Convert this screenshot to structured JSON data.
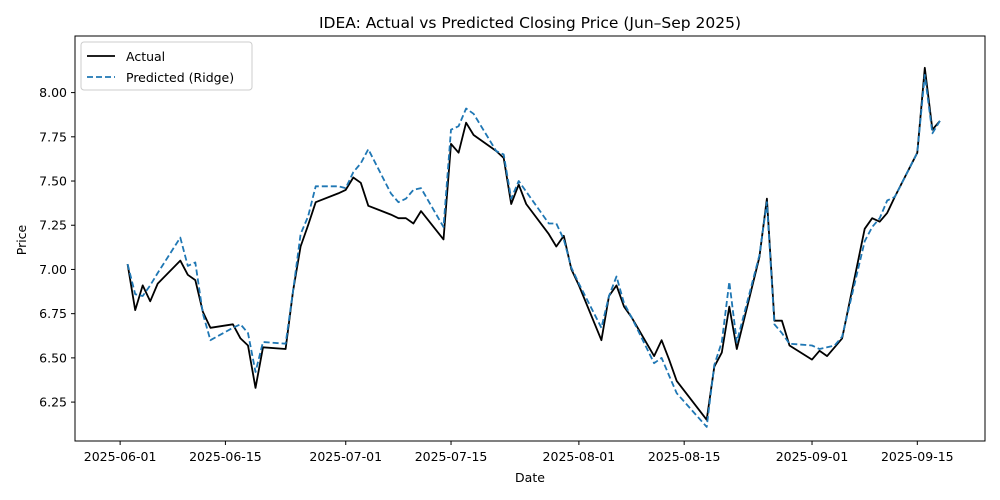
{
  "chart_data": {
    "type": "line",
    "title": "IDEA: Actual vs Predicted Closing Price (Jun–Sep 2025)",
    "xlabel": "Date",
    "ylabel": "Price",
    "xlim": [
      "2025-05-26",
      "2025-09-24"
    ],
    "ylim": [
      6.03,
      8.32
    ],
    "x_ticks": [
      "2025-06-01",
      "2025-06-15",
      "2025-07-01",
      "2025-07-15",
      "2025-08-01",
      "2025-08-15",
      "2025-09-01",
      "2025-09-15"
    ],
    "y_ticks": [
      "6.25",
      "6.50",
      "6.75",
      "7.00",
      "7.25",
      "7.50",
      "7.75",
      "8.00"
    ],
    "grid": false,
    "legend_position": "top-left",
    "x": [
      "2025-06-02",
      "2025-06-03",
      "2025-06-04",
      "2025-06-05",
      "2025-06-06",
      "2025-06-09",
      "2025-06-10",
      "2025-06-11",
      "2025-06-12",
      "2025-06-13",
      "2025-06-16",
      "2025-06-17",
      "2025-06-18",
      "2025-06-19",
      "2025-06-20",
      "2025-06-23",
      "2025-06-24",
      "2025-06-25",
      "2025-06-26",
      "2025-06-27",
      "2025-06-30",
      "2025-07-01",
      "2025-07-02",
      "2025-07-03",
      "2025-07-04",
      "2025-07-07",
      "2025-07-08",
      "2025-07-09",
      "2025-07-10",
      "2025-07-11",
      "2025-07-14",
      "2025-07-15",
      "2025-07-16",
      "2025-07-17",
      "2025-07-18",
      "2025-07-21",
      "2025-07-22",
      "2025-07-23",
      "2025-07-24",
      "2025-07-25",
      "2025-07-28",
      "2025-07-29",
      "2025-07-30",
      "2025-07-31",
      "2025-08-01",
      "2025-08-04",
      "2025-08-05",
      "2025-08-06",
      "2025-08-07",
      "2025-08-08",
      "2025-08-11",
      "2025-08-12",
      "2025-08-13",
      "2025-08-14",
      "2025-08-18",
      "2025-08-19",
      "2025-08-20",
      "2025-08-21",
      "2025-08-22",
      "2025-08-25",
      "2025-08-26",
      "2025-08-27",
      "2025-08-28",
      "2025-08-29",
      "2025-09-01",
      "2025-09-02",
      "2025-09-03",
      "2025-09-04",
      "2025-09-05",
      "2025-09-08",
      "2025-09-09",
      "2025-09-10",
      "2025-09-11",
      "2025-09-12",
      "2025-09-15",
      "2025-09-16",
      "2025-09-17",
      "2025-09-18"
    ],
    "series": [
      {
        "name": "Actual",
        "color": "#000000",
        "style": "solid",
        "values": [
          7.03,
          6.77,
          6.91,
          6.82,
          6.92,
          7.05,
          6.97,
          6.94,
          6.76,
          6.67,
          6.69,
          6.61,
          6.57,
          6.33,
          6.56,
          6.55,
          6.88,
          7.13,
          7.25,
          7.38,
          7.43,
          7.45,
          7.52,
          7.49,
          7.36,
          7.31,
          7.29,
          7.29,
          7.26,
          7.33,
          7.17,
          7.71,
          7.66,
          7.83,
          7.76,
          7.67,
          7.63,
          7.37,
          7.48,
          7.37,
          7.2,
          7.13,
          7.19,
          7.0,
          6.91,
          6.6,
          6.85,
          6.91,
          6.79,
          6.73,
          6.51,
          6.6,
          6.49,
          6.37,
          6.15,
          6.45,
          6.53,
          6.79,
          6.55,
          7.07,
          7.4,
          6.71,
          6.71,
          6.57,
          6.49,
          6.54,
          6.51,
          6.56,
          6.61,
          7.23,
          7.29,
          7.27,
          7.32,
          7.41,
          7.66,
          8.14,
          7.79,
          7.84
        ]
      },
      {
        "name": "Predicted (Ridge)",
        "color": "#1f77b4",
        "style": "dashed",
        "values": [
          7.03,
          6.86,
          6.85,
          6.91,
          6.98,
          7.18,
          7.02,
          7.04,
          6.75,
          6.6,
          6.67,
          6.69,
          6.64,
          6.42,
          6.59,
          6.58,
          6.88,
          7.2,
          7.3,
          7.47,
          7.47,
          7.46,
          7.55,
          7.6,
          7.68,
          7.43,
          7.38,
          7.4,
          7.45,
          7.46,
          7.24,
          7.79,
          7.81,
          7.91,
          7.88,
          7.67,
          7.65,
          7.4,
          7.5,
          7.44,
          7.26,
          7.26,
          7.17,
          7.01,
          6.92,
          6.67,
          6.85,
          6.96,
          6.81,
          6.73,
          6.47,
          6.5,
          6.4,
          6.3,
          6.11,
          6.46,
          6.59,
          6.93,
          6.59,
          7.08,
          7.38,
          6.69,
          6.64,
          6.58,
          6.57,
          6.55,
          6.56,
          6.57,
          6.62,
          7.16,
          7.24,
          7.29,
          7.39,
          7.41,
          7.66,
          8.1,
          7.77,
          7.84
        ]
      }
    ]
  }
}
